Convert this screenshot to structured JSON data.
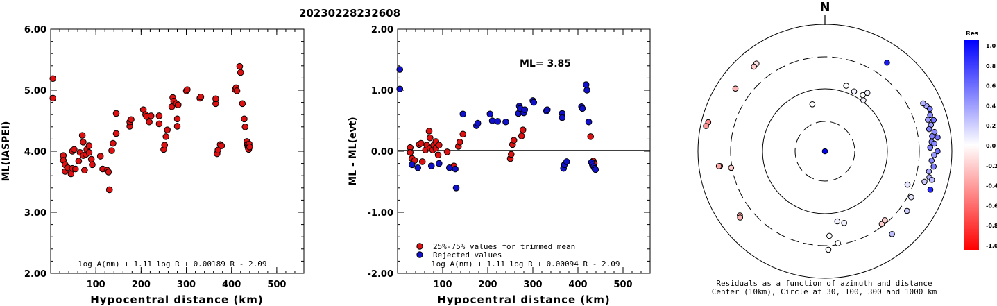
{
  "title": "20230228232608",
  "chart_data": [
    {
      "type": "scatter",
      "ylabel": "ML(IASPEI)",
      "xlabel": "Hypocentral distance (km)",
      "xlim": [
        0,
        560
      ],
      "ylim": [
        2.0,
        6.0
      ],
      "xticks": [
        "100",
        "200",
        "300",
        "400",
        "500"
      ],
      "yticks": [
        "2.00",
        "3.00",
        "4.00",
        "5.00",
        "6.00"
      ],
      "formula": "log A(nm) + 1.11 log R + 0.00189 R - 2.09",
      "series": [
        {
          "color": "#dd1111",
          "points": [
            [
              5,
              5.19
            ],
            [
              5,
              4.87
            ],
            [
              28,
              3.93
            ],
            [
              28,
              3.85
            ],
            [
              32,
              3.67
            ],
            [
              32,
              3.78
            ],
            [
              38,
              3.73
            ],
            [
              45,
              3.63
            ],
            [
              48,
              3.72
            ],
            [
              48,
              4.0
            ],
            [
              52,
              4.03
            ],
            [
              55,
              3.71
            ],
            [
              62,
              3.84
            ],
            [
              65,
              3.98
            ],
            [
              70,
              4.26
            ],
            [
              72,
              3.93
            ],
            [
              72,
              4.15
            ],
            [
              75,
              3.69
            ],
            [
              78,
              3.95
            ],
            [
              80,
              4.03
            ],
            [
              85,
              4.09
            ],
            [
              85,
              3.98
            ],
            [
              90,
              3.87
            ],
            [
              92,
              3.78
            ],
            [
              110,
              3.92
            ],
            [
              115,
              3.71
            ],
            [
              125,
              3.69
            ],
            [
              128,
              3.66
            ],
            [
              130,
              3.37
            ],
            [
              135,
              4.01
            ],
            [
              138,
              4.13
            ],
            [
              145,
              4.29
            ],
            [
              145,
              4.62
            ],
            [
              175,
              4.41
            ],
            [
              175,
              4.48
            ],
            [
              178,
              4.52
            ],
            [
              205,
              4.68
            ],
            [
              210,
              4.6
            ],
            [
              212,
              4.57
            ],
            [
              218,
              4.48
            ],
            [
              222,
              4.58
            ],
            [
              240,
              4.45
            ],
            [
              240,
              4.58
            ],
            [
              250,
              4.03
            ],
            [
              252,
              4.1
            ],
            [
              255,
              4.24
            ],
            [
              258,
              4.35
            ],
            [
              268,
              4.73
            ],
            [
              270,
              4.88
            ],
            [
              272,
              4.82
            ],
            [
              278,
              4.78
            ],
            [
              280,
              4.41
            ],
            [
              280,
              4.53
            ],
            [
              282,
              4.76
            ],
            [
              300,
              4.99
            ],
            [
              302,
              5.01
            ],
            [
              330,
              4.87
            ],
            [
              332,
              4.89
            ],
            [
              365,
              4.78
            ],
            [
              365,
              4.86
            ],
            [
              368,
              3.96
            ],
            [
              370,
              4.02
            ],
            [
              375,
              4.11
            ],
            [
              378,
              4.09
            ],
            [
              408,
              5.01
            ],
            [
              410,
              5.04
            ],
            [
              412,
              4.99
            ],
            [
              418,
              5.39
            ],
            [
              420,
              5.29
            ],
            [
              424,
              4.78
            ],
            [
              428,
              4.53
            ],
            [
              430,
              4.4
            ],
            [
              434,
              4.16
            ],
            [
              435,
              4.11
            ],
            [
              436,
              4.08
            ],
            [
              437,
              4.05
            ],
            [
              438,
              4.03
            ],
            [
              439,
              4.12
            ],
            [
              440,
              4.07
            ]
          ]
        }
      ]
    },
    {
      "type": "scatter",
      "ylabel": "ML - ML(evt)",
      "xlabel": "Hypocentral distance (km)",
      "xlim": [
        0,
        560
      ],
      "ylim": [
        -2.0,
        2.0
      ],
      "xticks": [
        "100",
        "200",
        "300",
        "400",
        "500"
      ],
      "yticks": [
        "-2.00",
        "-1.00",
        "0.00",
        "1.00",
        "2.00"
      ],
      "annotation": "ML= 3.85",
      "formula": "log A(nm) + 1.11 log R + 0.00094 R - 2.09",
      "legend": [
        "25%-75% values for trimmed mean",
        "Rejected values"
      ],
      "series": [
        {
          "name": "25%-75% values for trimmed mean",
          "color": "#dd1111",
          "points": [
            [
              28,
              0.06
            ],
            [
              28,
              -0.02
            ],
            [
              32,
              -0.12
            ],
            [
              38,
              -0.15
            ],
            [
              48,
              0.11
            ],
            [
              52,
              0.13
            ],
            [
              55,
              -0.17
            ],
            [
              62,
              0.02
            ],
            [
              65,
              0.1
            ],
            [
              70,
              0.33
            ],
            [
              72,
              0.05
            ],
            [
              72,
              0.22
            ],
            [
              78,
              0.02
            ],
            [
              80,
              0.1
            ],
            [
              85,
              0.16
            ],
            [
              85,
              0.05
            ],
            [
              90,
              -0.06
            ],
            [
              92,
              0.1
            ],
            [
              110,
              -0.01
            ],
            [
              125,
              -0.24
            ],
            [
              135,
              0.08
            ],
            [
              138,
              0.15
            ],
            [
              145,
              0.28
            ],
            [
              250,
              -0.12
            ],
            [
              252,
              -0.05
            ],
            [
              255,
              0.11
            ],
            [
              258,
              0.18
            ],
            [
              275,
              0.25
            ],
            [
              278,
              0.35
            ],
            [
              428,
              0.24
            ],
            [
              434,
              -0.16
            ],
            [
              436,
              -0.2
            ]
          ]
        },
        {
          "name": "Rejected values",
          "color": "#1111cc",
          "points": [
            [
              5,
              1.34
            ],
            [
              5,
              1.02
            ],
            [
              32,
              -0.22
            ],
            [
              45,
              -0.27
            ],
            [
              75,
              -0.24
            ],
            [
              92,
              -0.2
            ],
            [
              115,
              -0.27
            ],
            [
              128,
              -0.29
            ],
            [
              130,
              -0.6
            ],
            [
              145,
              0.61
            ],
            [
              175,
              0.42
            ],
            [
              178,
              0.46
            ],
            [
              205,
              0.61
            ],
            [
              210,
              0.5
            ],
            [
              222,
              0.49
            ],
            [
              240,
              0.48
            ],
            [
              268,
              0.62
            ],
            [
              270,
              0.74
            ],
            [
              272,
              0.7
            ],
            [
              280,
              0.63
            ],
            [
              282,
              0.68
            ],
            [
              300,
              0.83
            ],
            [
              302,
              0.8
            ],
            [
              330,
              0.66
            ],
            [
              332,
              0.68
            ],
            [
              365,
              0.62
            ],
            [
              365,
              0.55
            ],
            [
              368,
              -0.28
            ],
            [
              370,
              -0.22
            ],
            [
              375,
              -0.17
            ],
            [
              408,
              0.73
            ],
            [
              410,
              0.7
            ],
            [
              418,
              1.09
            ],
            [
              420,
              1.0
            ],
            [
              424,
              0.48
            ],
            [
              430,
              -0.18
            ],
            [
              432,
              -0.22
            ],
            [
              435,
              -0.25
            ],
            [
              437,
              -0.28
            ],
            [
              439,
              -0.3
            ]
          ]
        }
      ]
    },
    {
      "type": "polar-scatter",
      "north_label": "N",
      "caption_line1": "Residuals as a function of azimuth and distance",
      "caption_line2": "Center (10km), Circle at 30, 100, 300 and 1000 km",
      "colorbar_title": "Res",
      "colorbar_ticks": [
        "1.0",
        "0.8",
        "0.6",
        "0.4",
        "0.2",
        "0.0",
        "-0.2",
        "-0.4",
        "-0.6",
        "-0.8",
        "-1.0"
      ],
      "points": [
        {
          "az": 0,
          "dist": 10,
          "res": 1.0
        },
        {
          "az": 322,
          "dist": 560,
          "res": -0.1
        },
        {
          "az": 320,
          "dist": 545,
          "res": -0.2
        },
        {
          "az": 305,
          "dist": 520,
          "res": -0.3
        },
        {
          "az": 284,
          "dist": 780,
          "res": -0.45
        },
        {
          "az": 282,
          "dist": 820,
          "res": -0.4
        },
        {
          "az": 262,
          "dist": 460,
          "res": -0.3
        },
        {
          "az": 262,
          "dist": 480,
          "res": -0.35
        },
        {
          "az": 260,
          "dist": 310,
          "res": -0.2
        },
        {
          "az": 233,
          "dist": 470,
          "res": -0.35
        },
        {
          "az": 232,
          "dist": 490,
          "res": -0.3
        },
        {
          "az": 142,
          "dist": 280,
          "res": -0.2
        },
        {
          "az": 139,
          "dist": 270,
          "res": -0.2
        },
        {
          "az": 35,
          "dist": 500,
          "res": 0.9
        },
        {
          "az": 26,
          "dist": 115,
          "res": 0.05
        },
        {
          "az": 18,
          "dist": 125,
          "res": 0.0
        },
        {
          "az": 34,
          "dist": 120,
          "res": 0.0
        },
        {
          "az": 36,
          "dist": 140,
          "res": 0.05
        },
        {
          "az": 37,
          "dist": 105,
          "res": 0.05
        },
        {
          "az": 345,
          "dist": 60,
          "res": 0.0
        },
        {
          "az": 66,
          "dist": 560,
          "res": 0.35
        },
        {
          "az": 64,
          "dist": 520,
          "res": 0.3
        },
        {
          "az": 68,
          "dist": 600,
          "res": 0.5
        },
        {
          "az": 71,
          "dist": 560,
          "res": 0.45
        },
        {
          "az": 73,
          "dist": 490,
          "res": 0.4
        },
        {
          "az": 74,
          "dist": 600,
          "res": 0.55
        },
        {
          "az": 76,
          "dist": 520,
          "res": 0.4
        },
        {
          "az": 78,
          "dist": 470,
          "res": 0.5
        },
        {
          "az": 80,
          "dist": 560,
          "res": 0.45
        },
        {
          "az": 82,
          "dist": 500,
          "res": 0.5
        },
        {
          "az": 83,
          "dist": 610,
          "res": 0.55
        },
        {
          "az": 85,
          "dist": 480,
          "res": 0.5
        },
        {
          "az": 86,
          "dist": 530,
          "res": 0.45
        },
        {
          "az": 88,
          "dist": 450,
          "res": 0.5
        },
        {
          "az": 90,
          "dist": 590,
          "res": 0.55
        },
        {
          "az": 92,
          "dist": 520,
          "res": 0.4
        },
        {
          "az": 95,
          "dist": 480,
          "res": 0.45
        },
        {
          "az": 98,
          "dist": 530,
          "res": 0.5
        },
        {
          "az": 101,
          "dist": 460,
          "res": 0.35
        },
        {
          "az": 104,
          "dist": 490,
          "res": 0.3
        },
        {
          "az": 107,
          "dist": 430,
          "res": 0.2
        },
        {
          "az": 110,
          "dist": 580,
          "res": 0.85
        },
        {
          "az": 105,
          "dist": 550,
          "res": 0.25
        },
        {
          "az": 118,
          "dist": 340,
          "res": 0.1
        },
        {
          "az": 126,
          "dist": 390,
          "res": 0.2
        },
        {
          "az": 170,
          "dist": 135,
          "res": 0.05
        },
        {
          "az": 177,
          "dist": 215,
          "res": 0.0
        },
        {
          "az": 172,
          "dist": 285,
          "res": 0.0
        },
        {
          "az": 178,
          "dist": 350,
          "res": 0.0
        },
        {
          "az": 165,
          "dist": 150,
          "res": 0.05
        },
        {
          "az": 112,
          "dist": 250,
          "res": 0.1
        },
        {
          "az": 141,
          "dist": 470,
          "res": 0.25
        }
      ]
    }
  ]
}
